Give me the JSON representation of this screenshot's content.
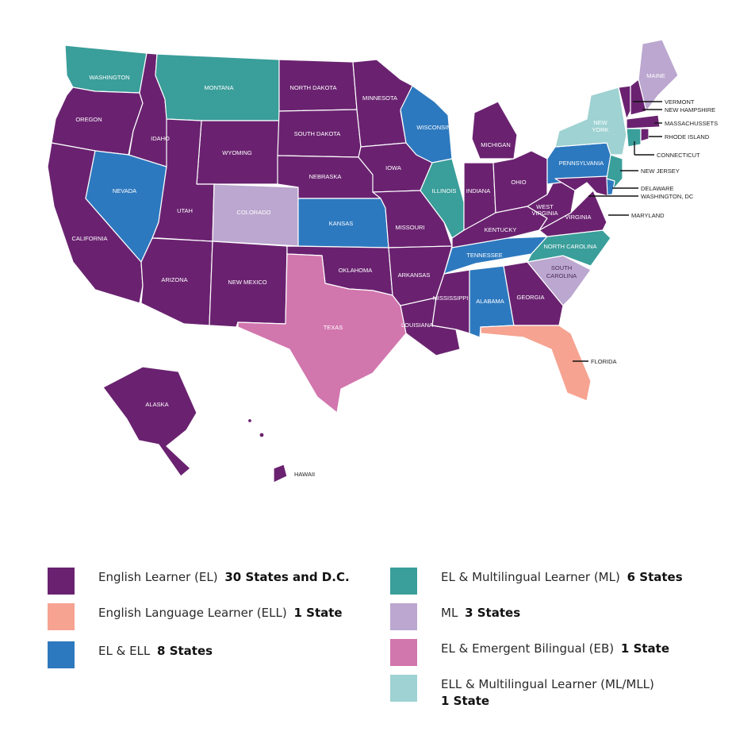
{
  "colors": {
    "el": "#6a2270",
    "ell": "#f6a391",
    "el_ell": "#2d79bf",
    "el_ml": "#3a9e9a",
    "ml": "#bba7cf",
    "el_eb": "#d276ae",
    "ell_ml": "#9fd2d2"
  },
  "states": {
    "washington": "WASHINGTON",
    "oregon": "OREGON",
    "california": "CALIFORNIA",
    "idaho": "IDAHO",
    "nevada": "NEVADA",
    "montana": "MONTANA",
    "wyoming": "WYOMING",
    "utah": "UTAH",
    "arizona": "ARIZONA",
    "colorado": "COLORADO",
    "new_mexico": "NEW MEXICO",
    "north_dakota": "NORTH DAKOTA",
    "south_dakota": "SOUTH DAKOTA",
    "nebraska": "NEBRASKA",
    "kansas": "KANSAS",
    "oklahoma": "OKLAHOMA",
    "texas": "TEXAS",
    "minnesota": "MINNESOTA",
    "iowa": "IOWA",
    "missouri": "MISSOURI",
    "arkansas": "ARKANSAS",
    "louisiana": "LOUISIANA",
    "wisconsin": "WISCONSIN",
    "illinois": "ILLINOIS",
    "michigan": "MICHIGAN",
    "indiana": "INDIANA",
    "ohio": "OHIO",
    "kentucky": "KENTUCKY",
    "tennessee": "TENNESSEE",
    "mississippi": "MISSISSIPPI",
    "alabama": "ALABAMA",
    "georgia": "GEORGIA",
    "florida": "FLORIDA",
    "south_carolina_1": "SOUTH",
    "south_carolina_2": "CAROLINA",
    "north_carolina": "NORTH CAROLINA",
    "virginia": "VIRGINIA",
    "west_virginia_1": "WEST",
    "west_virginia_2": "VIRGINIA",
    "pennsylvania": "PENNSYLVANIA",
    "new_york_1": "NEW",
    "new_york_2": "YORK",
    "maine": "MAINE",
    "alaska": "ALASKA",
    "hawaii": "HAWAII"
  },
  "callouts": {
    "vermont": "VERMONT",
    "new_hampshire": "NEW HAMPSHIRE",
    "massachusetts": "MASSACHUSSETS",
    "rhode_island": "RHODE ISLAND",
    "connecticut": "CONNECTICUT",
    "new_jersey": "NEW JERSEY",
    "delaware": "DELAWARE",
    "washington_dc": "WASHINGTON, DC",
    "maryland": "MARYLAND"
  },
  "legend": [
    {
      "label": "English Learner (EL)",
      "count": "30 States and D.C.",
      "color": "#6a2270"
    },
    {
      "label": "English Language Learner (ELL)",
      "count": "1 State",
      "color": "#f6a391"
    },
    {
      "label": "EL & ELL",
      "count": "8 States",
      "color": "#2d79bf"
    },
    {
      "label": "EL & Multilingual Learner (ML)",
      "count": "6 States",
      "color": "#3a9e9a"
    },
    {
      "label": "ML",
      "count": "3 States",
      "color": "#bba7cf"
    },
    {
      "label": "EL & Emergent Bilingual (EB)",
      "count": "1 State",
      "color": "#d276ae"
    },
    {
      "label": "ELL & Multilingual Learner (ML/MLL)",
      "count": "1 State",
      "color": "#9fd2d2"
    }
  ]
}
